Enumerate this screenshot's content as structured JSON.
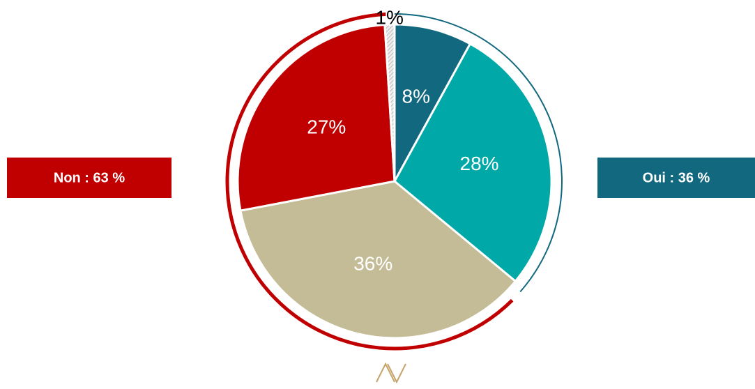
{
  "chart_data": {
    "type": "pie",
    "categories": [
      null,
      null,
      null,
      null,
      null
    ],
    "values": [
      8,
      28,
      36,
      27,
      1
    ],
    "value_labels": [
      "8%",
      "28%",
      "36%",
      "27%",
      "1%"
    ],
    "colors": [
      "#12687f",
      "#00a8a8",
      "#c4bc96",
      "#c00000",
      "#d9d9d9"
    ],
    "annotations": [
      "Non : 63 %",
      "Oui : 36 %"
    ]
  }
}
